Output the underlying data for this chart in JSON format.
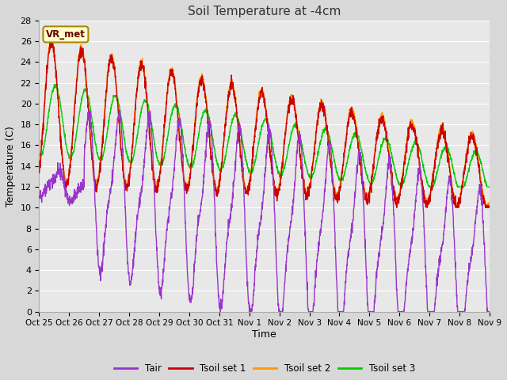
{
  "title": "Soil Temperature at -4cm",
  "xlabel": "Time",
  "ylabel": "Temperature (C)",
  "ylim": [
    0,
    28
  ],
  "yticks": [
    0,
    2,
    4,
    6,
    8,
    10,
    12,
    14,
    16,
    18,
    20,
    22,
    24,
    26,
    28
  ],
  "xtick_labels": [
    "Oct 25",
    "Oct 26",
    "Oct 27",
    "Oct 28",
    "Oct 29",
    "Oct 30",
    "Oct 31",
    "Nov 1",
    "Nov 2",
    "Nov 3",
    "Nov 4",
    "Nov 5",
    "Nov 6",
    "Nov 7",
    "Nov 8",
    "Nov 9"
  ],
  "station_label": "VR_met",
  "station_label_bg": "#ffffcc",
  "station_label_border": "#aa8800",
  "fig_bg_color": "#d8d8d8",
  "plot_bg_color": "#e8e8e8",
  "grid_color": "#ffffff",
  "colors": {
    "Tair": "#9933cc",
    "Tsoil1": "#cc0000",
    "Tsoil2": "#ff9900",
    "Tsoil3": "#00cc00"
  },
  "legend_labels": [
    "Tair",
    "Tsoil set 1",
    "Tsoil set 2",
    "Tsoil set 3"
  ],
  "linewidth": 1.0
}
